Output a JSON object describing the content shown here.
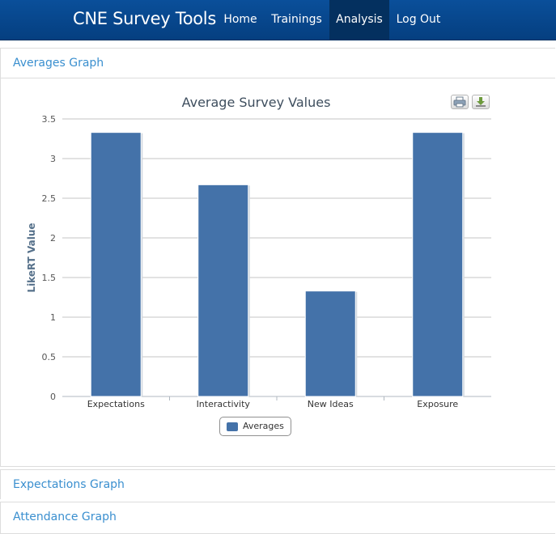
{
  "navbar": {
    "brand": "CNE Survey Tools",
    "items": [
      {
        "label": "Home"
      },
      {
        "label": "Trainings"
      },
      {
        "label": "Analysis"
      },
      {
        "label": "Log Out"
      }
    ]
  },
  "panels": {
    "averages_heading": "Averages Graph",
    "expectations_heading": "Expectations Graph",
    "attendance_heading": "Attendance Graph"
  },
  "colors": {
    "bar": "#4472a9",
    "navbar": "#0a4f9a",
    "active_nav": "#04305f",
    "link": "#3a8fcf"
  },
  "icons": {
    "print": "print-icon",
    "download": "download-icon"
  },
  "chart_data": {
    "type": "bar",
    "title": "Average Survey Values",
    "xlabel": "",
    "ylabel": "LikeRT Value",
    "categories": [
      "Expectations",
      "Interactivity",
      "New Ideas",
      "Exposure"
    ],
    "series": [
      {
        "name": "Averages",
        "values": [
          3.33,
          2.67,
          1.33,
          3.33
        ]
      }
    ],
    "ylim": [
      0,
      3.5
    ],
    "yticks": [
      "0",
      "0.5",
      "1",
      "1.5",
      "2",
      "2.5",
      "3",
      "3.5"
    ],
    "grid": true,
    "legend": "bottom-center"
  }
}
